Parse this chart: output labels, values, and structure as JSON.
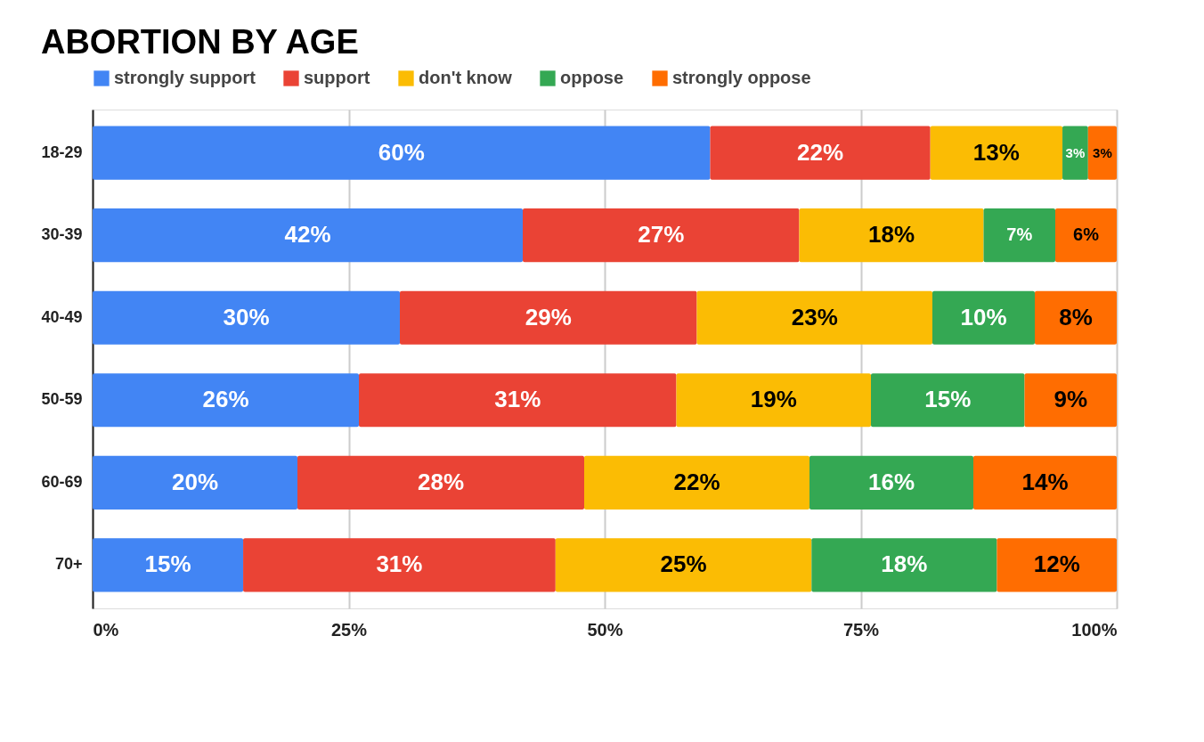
{
  "chart_data": {
    "type": "bar",
    "title": "ABORTION BY AGE",
    "orientation": "horizontal",
    "stacked": true,
    "legend": "top",
    "grid": "x",
    "categories": [
      "18-29",
      "30-39",
      "40-49",
      "50-59",
      "60-69",
      "70+"
    ],
    "xlim": [
      0,
      100
    ],
    "xticks": [
      {
        "value": 0,
        "label": "0%"
      },
      {
        "value": 25,
        "label": "25%"
      },
      {
        "value": 50,
        "label": "50%"
      },
      {
        "value": 75,
        "label": "75%"
      },
      {
        "value": 100,
        "label": "100%"
      }
    ],
    "series": [
      {
        "name": "strongly support",
        "color": "#4285f4",
        "values": [
          60.3,
          42,
          30,
          26,
          20,
          14.7
        ],
        "value_labels": [
          "60%",
          "42%",
          "30%",
          "26%",
          "20%",
          "15%"
        ]
      },
      {
        "name": "support",
        "color": "#ea4335",
        "values": [
          21.5,
          27,
          29,
          31,
          28,
          30.5
        ],
        "value_labels": [
          "22%",
          "27%",
          "29%",
          "31%",
          "28%",
          "31%"
        ]
      },
      {
        "name": "don't know",
        "color": "#fbbc04",
        "values": [
          12.9,
          18,
          23,
          19,
          22,
          25
        ],
        "value_labels": [
          "13%",
          "18%",
          "23%",
          "19%",
          "22%",
          "25%"
        ]
      },
      {
        "name": "oppose",
        "color": "#34a853",
        "values": [
          2.5,
          7,
          10,
          15,
          16,
          18.1
        ],
        "value_labels": [
          "3%",
          "7%",
          "10%",
          "15%",
          "16%",
          "18%"
        ]
      },
      {
        "name": "strongly oppose",
        "color": "#ff6d01",
        "values": [
          2.8,
          6,
          8,
          9,
          14,
          11.7
        ],
        "value_labels": [
          "3%",
          "6%",
          "8%",
          "9%",
          "14%",
          "12%"
        ]
      }
    ]
  }
}
